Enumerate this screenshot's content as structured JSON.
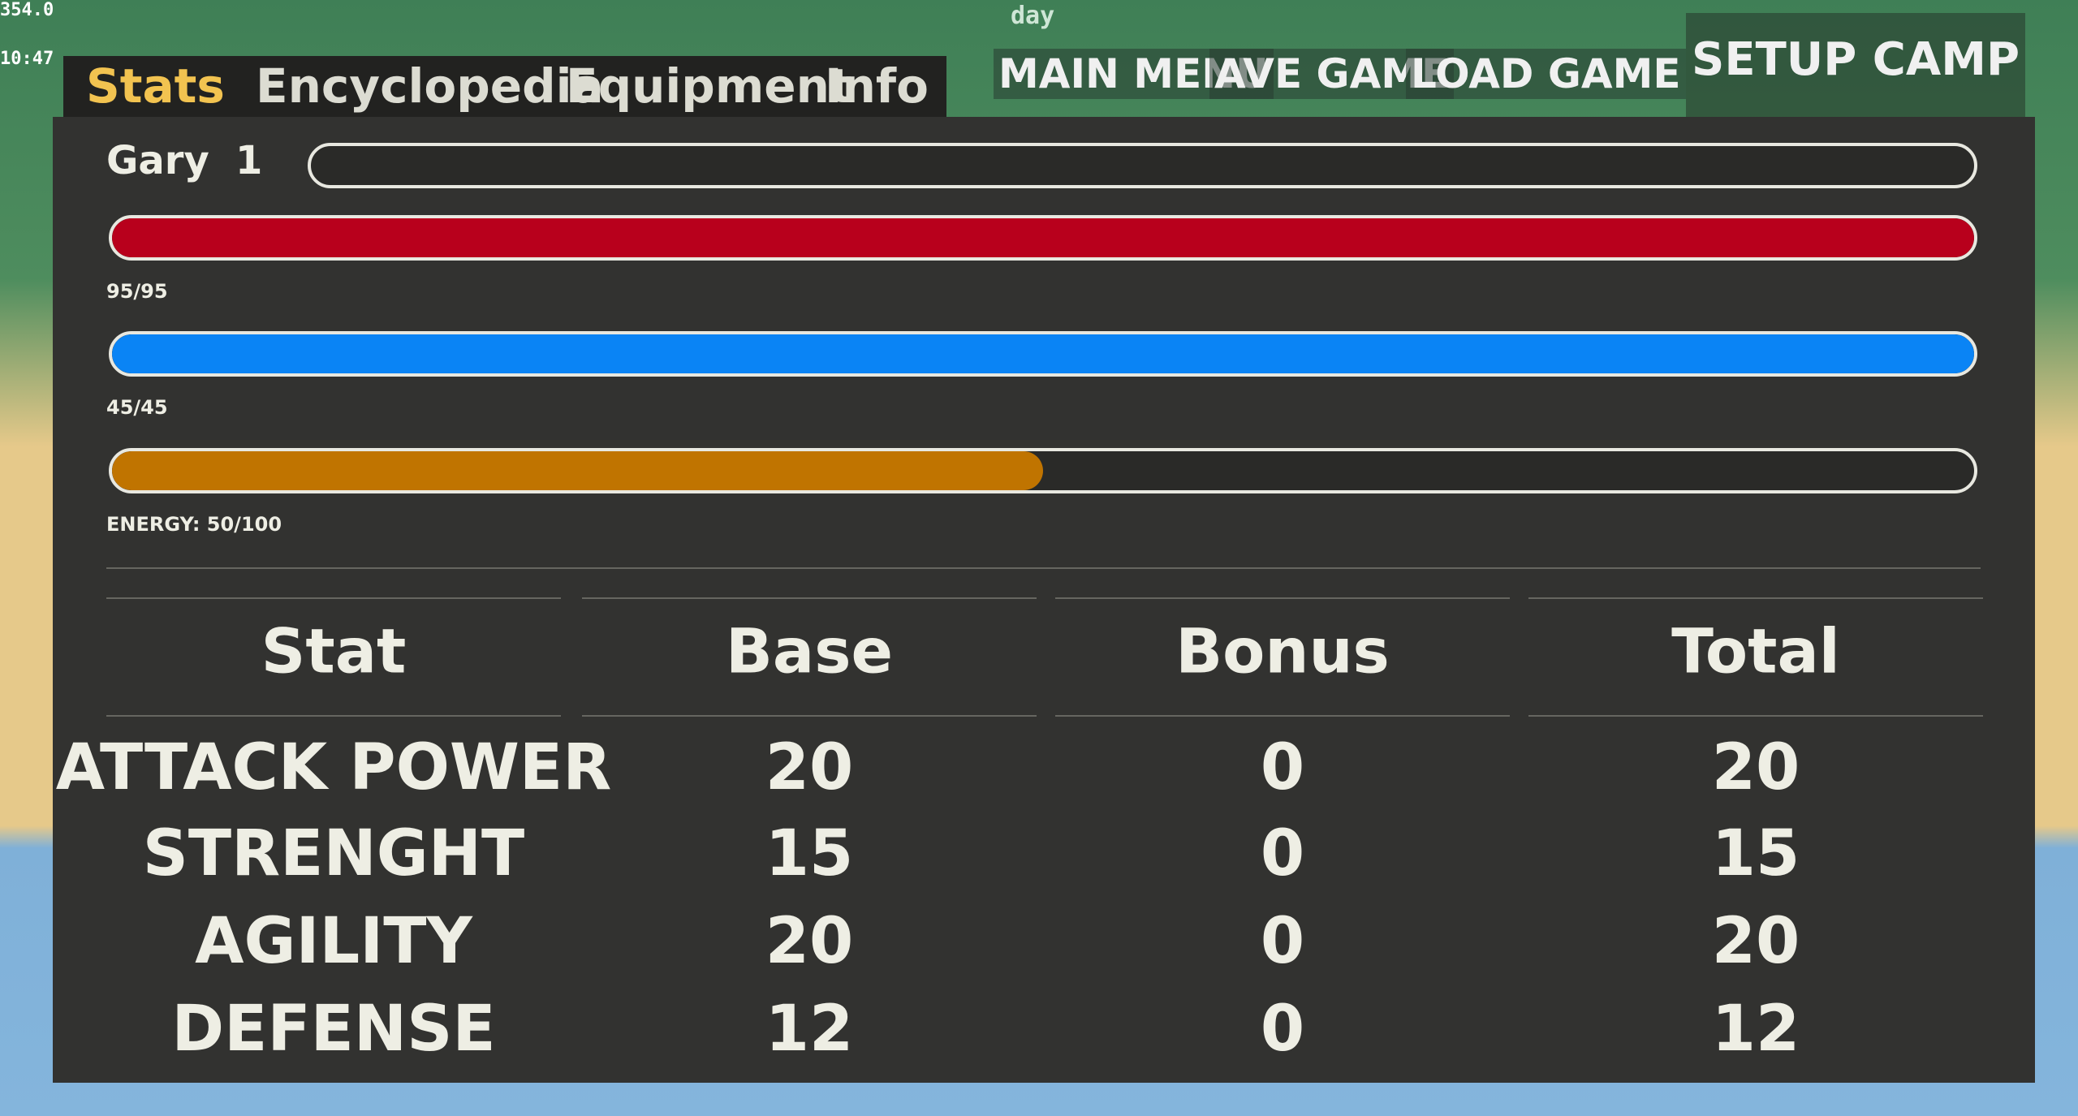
{
  "debug": {
    "fps": "354.0",
    "time": "10:47",
    "phase": "day"
  },
  "tabs": [
    "Stats",
    "Encyclopedia",
    "Equipment",
    "Info"
  ],
  "menu": [
    "MAIN MENU",
    "AVE GAME",
    "LOAD GAME"
  ],
  "camp_button": "SETUP CAMP",
  "character": {
    "name": "Gary",
    "level": "1"
  },
  "bars": [
    {
      "label": "95/95",
      "value": 95,
      "max": 95,
      "color": "#b8001c"
    },
    {
      "label": "45/45",
      "value": 45,
      "max": 45,
      "color": "#0a84f5"
    },
    {
      "label": "ENERGY: 50/100",
      "value": 50,
      "max": 100,
      "color": "#c07400"
    }
  ],
  "table": {
    "header": [
      "Stat",
      "Base",
      "Bonus",
      "Total"
    ],
    "rows": [
      [
        "ATTACK POWER",
        "20",
        "0",
        "20"
      ],
      [
        "STRENGHT",
        "15",
        "0",
        "15"
      ],
      [
        "AGILITY",
        "20",
        "0",
        "20"
      ],
      [
        "DEFENSE",
        "12",
        "0",
        "12"
      ]
    ]
  }
}
